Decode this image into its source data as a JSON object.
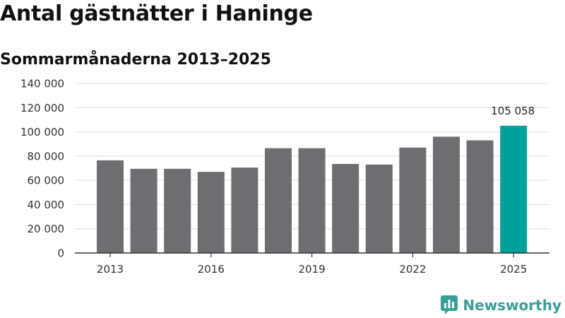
{
  "header": {
    "title": "Antal gästnätter i Haninge",
    "subtitle": "Sommarmånaderna 2013–2025"
  },
  "brand": {
    "name": "Newsworthy",
    "color": "#3a9e96",
    "icon": "newsworthy-logo-icon"
  },
  "colors": {
    "bar": "#6e6d72",
    "highlight": "#00a19a",
    "grid": "#dddddd",
    "axis": "#333333"
  },
  "chart_data": {
    "type": "bar",
    "title": "Antal gästnätter i Haninge",
    "subtitle": "Sommarmånaderna 2013–2025",
    "xlabel": "",
    "ylabel": "",
    "categories": [
      "2013",
      "2014",
      "2015",
      "2016",
      "2017",
      "2018",
      "2019",
      "2020",
      "2021",
      "2022",
      "2023",
      "2024",
      "2025"
    ],
    "x_tick_labels": [
      "2013",
      "2016",
      "2019",
      "2022",
      "2025"
    ],
    "values": [
      76500,
      69500,
      69500,
      67000,
      70500,
      86500,
      86500,
      73500,
      73000,
      87000,
      96000,
      93000,
      105058
    ],
    "ylim": [
      0,
      140000
    ],
    "yticks": [
      0,
      20000,
      40000,
      60000,
      80000,
      100000,
      120000,
      140000
    ],
    "y_tick_labels": [
      "0",
      "20 000",
      "40 000",
      "60 000",
      "80 000",
      "100 000",
      "120 000",
      "140 000"
    ],
    "highlight_category": "2025",
    "data_labels": [
      {
        "category": "2025",
        "text": "105 058"
      }
    ],
    "grid": true,
    "legend": "none"
  }
}
